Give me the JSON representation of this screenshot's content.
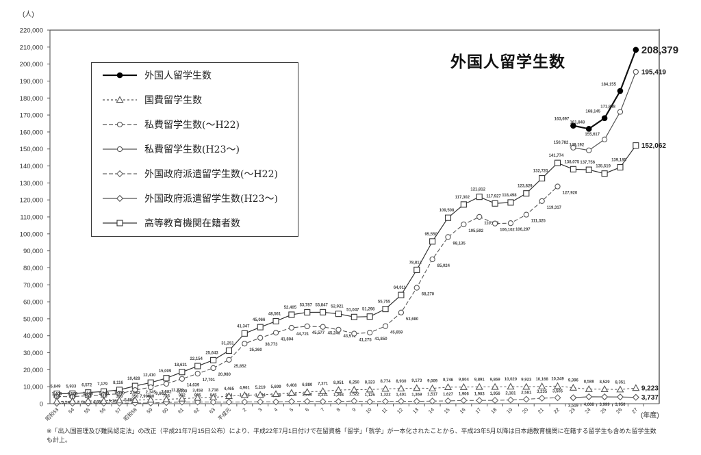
{
  "chart_data": {
    "type": "line",
    "title": "外国人留学生数",
    "ylabel": "(人)",
    "xlabel": "(年度)",
    "ylim": [
      0,
      220000
    ],
    "ytick_step": 10000,
    "yticks": [
      "0",
      "10,000",
      "20,000",
      "30,000",
      "40,000",
      "50,000",
      "60,000",
      "70,000",
      "80,000",
      "90,000",
      "100,000",
      "110,000",
      "120,000",
      "130,000",
      "140,000",
      "150,000",
      "160,000",
      "170,000",
      "180,000",
      "190,000",
      "200,000",
      "210,000",
      "220,000"
    ],
    "grid": false,
    "legend_position": "inset upper-left (boxed)",
    "categories": [
      "昭和53",
      "54",
      "55",
      "56",
      "57",
      "昭和58",
      "59",
      "60",
      "61",
      "62",
      "63",
      "平成元",
      "2",
      "3",
      "4",
      "5",
      "6",
      "7",
      "8",
      "9",
      "10",
      "11",
      "12",
      "13",
      "14",
      "15",
      "16",
      "17",
      "18",
      "19",
      "20",
      "21",
      "22",
      "23",
      "24",
      "25",
      "26",
      "27"
    ],
    "series": [
      {
        "name": "外国人留学生数",
        "line": "solid-bold",
        "marker": "filled-circle",
        "color": "#111111",
        "emphasize_last": true,
        "values": [
          null,
          null,
          null,
          null,
          null,
          null,
          null,
          null,
          null,
          null,
          null,
          null,
          null,
          null,
          null,
          null,
          null,
          null,
          null,
          null,
          null,
          null,
          null,
          null,
          null,
          null,
          null,
          null,
          null,
          null,
          null,
          null,
          null,
          163697,
          161848,
          168145,
          184155,
          208379
        ]
      },
      {
        "name": "国費留学生数",
        "line": "short-dashed",
        "marker": "open-triangle",
        "color": "#555555",
        "emphasize_last": true,
        "values": [
          1400,
          1500,
          1600,
          1700,
          1900,
          2082,
          2345,
          2582,
          3000,
          3458,
          3718,
          4465,
          4961,
          5219,
          5699,
          6408,
          6880,
          7371,
          8051,
          8250,
          8323,
          8774,
          8930,
          9173,
          9009,
          9746,
          9804,
          9891,
          9869,
          10020,
          9923,
          10168,
          10349,
          9396,
          8588,
          8529,
          8351,
          9223
        ]
      },
      {
        "name": "私費留学生数(～H22)",
        "line": "dashed",
        "marker": "open-circle",
        "color": "#555555",
        "emphasize_last": false,
        "values": [
          4199,
          4163,
          4682,
          5169,
          5886,
          7996,
          9665,
          11722,
          14639,
          17701,
          20980,
          25852,
          35360,
          38773,
          41804,
          44721,
          45577,
          45245,
          43572,
          41275,
          41850,
          45659,
          53680,
          68270,
          85024,
          98135,
          105592,
          110018,
          106102,
          106297,
          111325,
          119317,
          127920,
          null,
          null,
          null,
          null,
          null
        ]
      },
      {
        "name": "私費留学生数(H23～)",
        "line": "solid",
        "marker": "open-circle",
        "color": "#555555",
        "emphasize_last": true,
        "values": [
          null,
          null,
          null,
          null,
          null,
          null,
          null,
          null,
          null,
          null,
          null,
          null,
          null,
          null,
          null,
          null,
          null,
          null,
          null,
          null,
          null,
          null,
          null,
          null,
          null,
          null,
          null,
          null,
          null,
          null,
          null,
          null,
          null,
          150782,
          149192,
          155617,
          171848,
          195419
        ]
      },
      {
        "name": "外国政府派遣留学生数(～H22)",
        "line": "dashed",
        "marker": "open-diamond",
        "color": "#666666",
        "emphasize_last": false,
        "values": [
          250,
          270,
          290,
          310,
          330,
          350,
          400,
          705,
          992,
          995,
          945,
          934,
          1026,
          1074,
          1058,
          1276,
          1330,
          1231,
          1298,
          1522,
          1125,
          1322,
          1401,
          1369,
          1517,
          1627,
          1906,
          1903,
          1956,
          2181,
          2581,
          3235,
          3505,
          null,
          null,
          null,
          null,
          null
        ]
      },
      {
        "name": "外国政府派遣留学生数(H23～)",
        "line": "solid",
        "marker": "open-diamond",
        "color": "#555555",
        "emphasize_last": true,
        "values": [
          null,
          null,
          null,
          null,
          null,
          null,
          null,
          null,
          null,
          null,
          null,
          null,
          null,
          null,
          null,
          null,
          null,
          null,
          null,
          null,
          null,
          null,
          null,
          null,
          null,
          null,
          null,
          null,
          null,
          null,
          null,
          null,
          null,
          3519,
          4068,
          3999,
          3956,
          3737
        ]
      },
      {
        "name": "高等教育機関在籍者数",
        "line": "solid",
        "marker": "open-square",
        "color": "#333333",
        "emphasize_last": true,
        "values": [
          5849,
          5933,
          6572,
          7179,
          8116,
          10428,
          12410,
          15009,
          18631,
          22154,
          25643,
          31251,
          41347,
          45066,
          48561,
          52405,
          53787,
          53847,
          52921,
          51047,
          51298,
          55755,
          64011,
          78812,
          95550,
          109508,
          117302,
          121812,
          117927,
          118498,
          123829,
          132720,
          141774,
          138075,
          137756,
          135519,
          139185,
          152062
        ]
      }
    ],
    "annotations": [
      "※「出入国管理及び難民認定法」の改正（平成21年7月15日公布）により、平成22年7月1日付けで在留資格「留学」「就学」が一本化されたことから、平成23年5月以降は日本語教育機関に在籍する留学生も含めた留学生数",
      "も計上。"
    ]
  },
  "page": {
    "title": "外国人留学生数",
    "y_unit": "(人)",
    "x_unit": "(年度)",
    "footnote_lines": [
      "※「出入国管理及び難民認定法」の改正（平成21年7月15日公布）により、平成22年7月1日付けで在留資格「留学」「就学」が一本化されたことから、平成23年5月以降は日本語教育機関に在籍する留学生も含めた留学生数",
      "も計上。"
    ]
  }
}
